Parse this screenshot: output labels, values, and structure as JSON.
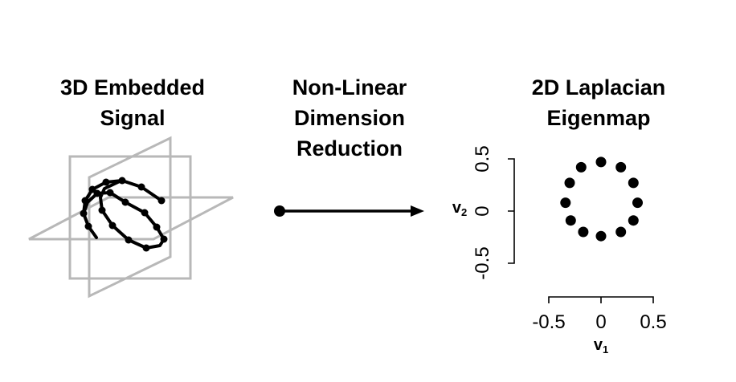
{
  "panels": {
    "left_title": [
      "3D Embedded",
      "Signal"
    ],
    "middle_title": [
      "Non-Linear",
      "Dimension",
      "Reduction"
    ],
    "right_title": [
      "2D Laplacian",
      "Eigenmap"
    ]
  },
  "colors": {
    "plane": "#b8b8b8",
    "ink": "#000000"
  },
  "chart_data": {
    "type": "scatter",
    "xlabel": "v",
    "xlabel_subscript": "1",
    "ylabel": "v",
    "ylabel_subscript": "2",
    "xticks": [
      "-0.5",
      "0",
      "0.5"
    ],
    "yticks": [
      "-0.5",
      "0",
      "0.5"
    ],
    "xlim": [
      -0.5,
      0.5
    ],
    "ylim": [
      -0.5,
      0.5
    ],
    "grid": false,
    "points": [
      {
        "x": 0.0,
        "y": 0.47
      },
      {
        "x": 0.19,
        "y": 0.42
      },
      {
        "x": 0.31,
        "y": 0.27
      },
      {
        "x": 0.35,
        "y": 0.08
      },
      {
        "x": 0.31,
        "y": -0.09
      },
      {
        "x": 0.19,
        "y": -0.2
      },
      {
        "x": 0.0,
        "y": -0.24
      },
      {
        "x": -0.17,
        "y": -0.2
      },
      {
        "x": -0.29,
        "y": -0.09
      },
      {
        "x": -0.34,
        "y": 0.08
      },
      {
        "x": -0.3,
        "y": 0.27
      },
      {
        "x": -0.19,
        "y": 0.42
      }
    ]
  }
}
